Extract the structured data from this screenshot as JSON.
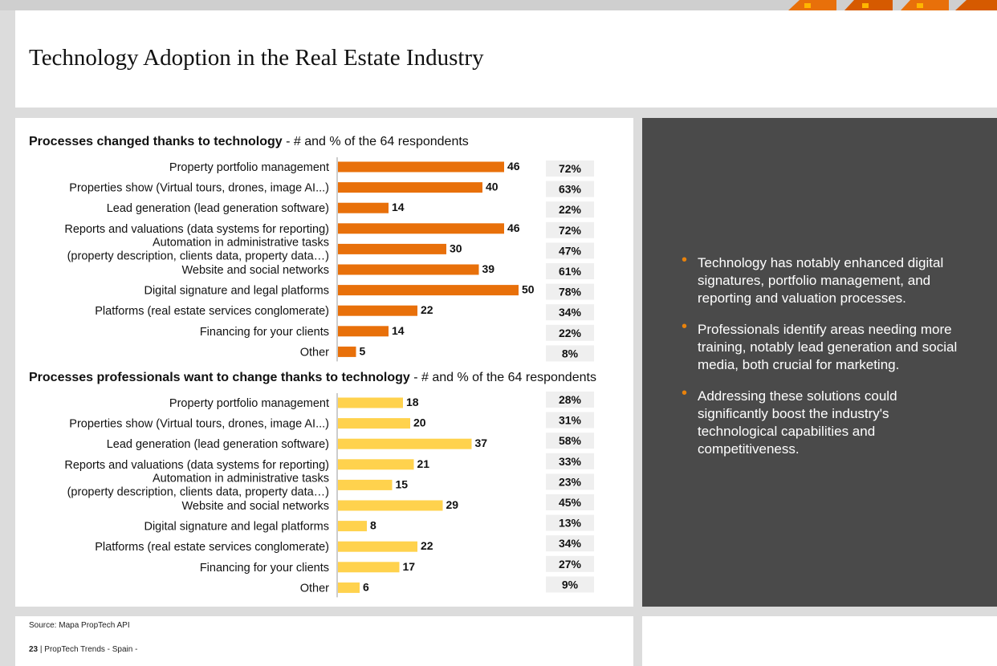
{
  "page": {
    "title": "Technology Adoption in the Real Estate Industry",
    "source": "Source: Mapa PropTech API",
    "page_number": "23",
    "footer_text": " | PropTech Trends - Spain -"
  },
  "colors": {
    "chart1": "#e8700a",
    "chart2": "#ffd24d",
    "insight_bg": "#4a4a4a",
    "bullet": "#e8820c",
    "pct_box": "#efefef"
  },
  "insights": [
    "Technology has notably enhanced digital signatures, portfolio management, and reporting and valuation processes.",
    "Professionals identify areas needing more training, notably lead generation and social media, both crucial for marketing.",
    "Addressing these solutions could significantly boost the industry's technological capabilities and competitiveness."
  ],
  "chart_data": [
    {
      "type": "bar",
      "orientation": "horizontal",
      "title": "Processes changed thanks to technology",
      "subtitle": " - # and % of the 64 respondents",
      "categories": [
        [
          "Property portfolio management"
        ],
        [
          "Properties show (Virtual tours, drones, image AI...)"
        ],
        [
          "Lead generation (lead generation software)"
        ],
        [
          "Reports and valuations (data systems for reporting)"
        ],
        [
          "Automation in administrative tasks",
          "(property description, clients data, property data…)"
        ],
        [
          "Website and social networks"
        ],
        [
          "Digital signature and legal platforms"
        ],
        [
          "Platforms (real estate services conglomerate)"
        ],
        [
          "Financing for your clients"
        ],
        [
          "Other"
        ]
      ],
      "values": [
        46,
        40,
        14,
        46,
        30,
        39,
        50,
        22,
        14,
        5
      ],
      "percentages": [
        "72%",
        "63%",
        "22%",
        "72%",
        "47%",
        "61%",
        "78%",
        "34%",
        "22%",
        "8%"
      ],
      "color": "#e8700a"
    },
    {
      "type": "bar",
      "orientation": "horizontal",
      "title": "Processes professionals want to change thanks to technology",
      "subtitle": " - # and % of the 64 respondents",
      "categories": [
        [
          "Property portfolio management"
        ],
        [
          "Properties show (Virtual tours, drones, image AI...)"
        ],
        [
          "Lead generation (lead generation software)"
        ],
        [
          "Reports and valuations (data systems for reporting)"
        ],
        [
          "Automation in administrative tasks",
          "(property description, clients data, property data…)"
        ],
        [
          "Website and social networks"
        ],
        [
          "Digital signature and legal platforms"
        ],
        [
          "Platforms (real estate services conglomerate)"
        ],
        [
          "Financing for your clients"
        ],
        [
          "Other"
        ]
      ],
      "values": [
        18,
        20,
        37,
        21,
        15,
        29,
        8,
        22,
        17,
        6
      ],
      "percentages": [
        "28%",
        "31%",
        "58%",
        "33%",
        "23%",
        "45%",
        "13%",
        "34%",
        "27%",
        "9%"
      ],
      "color": "#ffd24d"
    }
  ]
}
